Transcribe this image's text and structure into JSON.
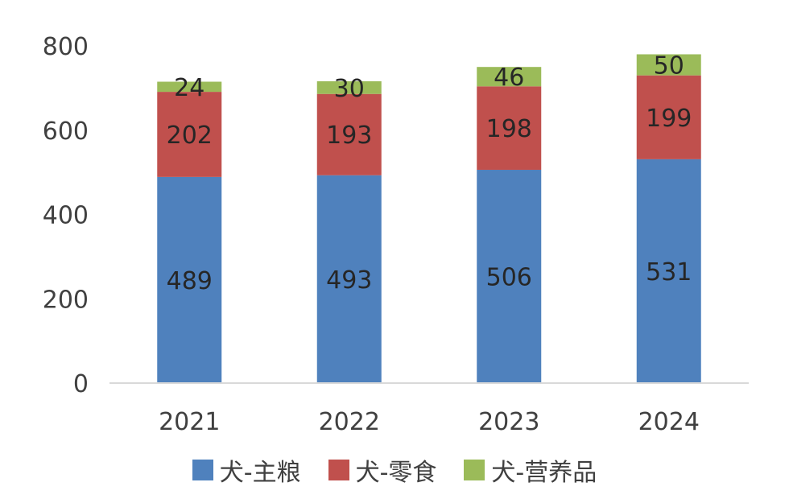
{
  "chart_data": {
    "type": "bar",
    "stacked": true,
    "title": "",
    "xlabel": "",
    "ylabel": "",
    "categories": [
      "2021",
      "2022",
      "2023",
      "2024"
    ],
    "ylim": [
      0,
      800
    ],
    "yticks": [
      "0",
      "200",
      "400",
      "600",
      "800"
    ],
    "grid": false,
    "legend_position": "bottom",
    "series": [
      {
        "name": "犬-主粮",
        "color": "#4f81bd",
        "values": [
          489,
          493,
          506,
          531
        ]
      },
      {
        "name": "犬-零食",
        "color": "#c0504d",
        "values": [
          202,
          193,
          198,
          199
        ]
      },
      {
        "name": "犬-营养品",
        "color": "#9bbb59",
        "values": [
          24,
          30,
          46,
          50
        ]
      }
    ]
  }
}
